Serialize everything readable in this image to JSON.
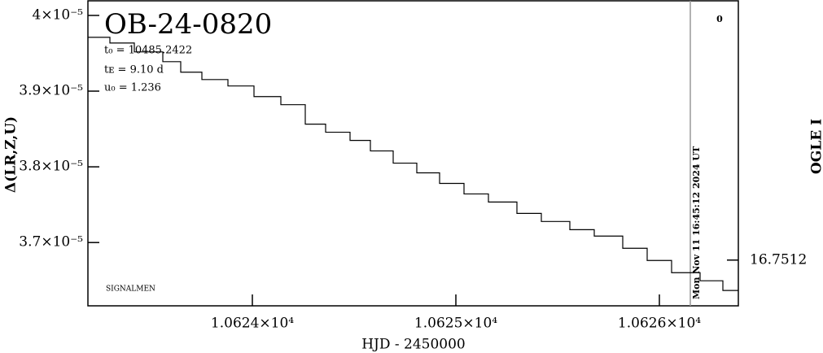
{
  "chart_data": {
    "type": "line",
    "step": "post",
    "title": "OB-24-0820",
    "annotations": [
      "t₀ = 10485.2422",
      "tᴇ = 9.10 d",
      "u₀ = 1.236"
    ],
    "footer": "SIGNALMEN",
    "corner_label": "0",
    "xlabel": "HJD - 2450000",
    "ylabel": "Δ(LR,Z,U)",
    "y2label": "OGLE I",
    "marker": {
      "x": 10626.152,
      "text": "Mon Nov 11 16:45:12 2024 UT",
      "color": "#999999"
    },
    "color": "#000000",
    "x": [
      10623.192,
      10623.3,
      10623.42,
      10623.56,
      10623.648,
      10623.752,
      10623.88,
      10624.008,
      10624.14,
      10624.26,
      10624.36,
      10624.48,
      10624.58,
      10624.692,
      10624.808,
      10624.92,
      10625.04,
      10625.16,
      10625.3,
      10625.42,
      10625.56,
      10625.68,
      10625.82,
      10625.94,
      10626.06,
      10626.2,
      10626.312,
      10626.388
    ],
    "values": [
      3.9711e-05,
      3.9636e-05,
      3.9518e-05,
      3.9389e-05,
      3.925e-05,
      3.9153e-05,
      3.9068e-05,
      3.8928e-05,
      3.8821e-05,
      3.8564e-05,
      3.8457e-05,
      3.8349e-05,
      3.821e-05,
      3.8049e-05,
      3.7921e-05,
      3.7781e-05,
      3.7642e-05,
      3.7535e-05,
      3.7385e-05,
      3.7278e-05,
      3.717e-05,
      3.7085e-05,
      3.6924e-05,
      3.6763e-05,
      3.6602e-05,
      3.6495e-05,
      3.6367e-05,
      3.6367e-05
    ],
    "xlim": [
      10623.192,
      10626.388
    ],
    "xticks": [
      {
        "value": 10624,
        "label": "1.0624×10⁴"
      },
      {
        "value": 10625,
        "label": "1.0625×10⁴"
      },
      {
        "value": 10626,
        "label": "1.0626×10⁴"
      }
    ],
    "ylim": [
      3.6164e-05,
      4.0193e-05
    ],
    "yticks": [
      {
        "value": 4e-05,
        "label": "4×10⁻⁵"
      },
      {
        "value": 3.9e-05,
        "label": "3.9×10⁻⁵"
      },
      {
        "value": 3.8e-05,
        "label": "3.8×10⁻⁵"
      },
      {
        "value": 3.7e-05,
        "label": "3.7×10⁻⁵"
      }
    ],
    "y2lim": [
      16.7515,
      16.7495
    ],
    "y2ticks": [
      16.7512
    ]
  }
}
